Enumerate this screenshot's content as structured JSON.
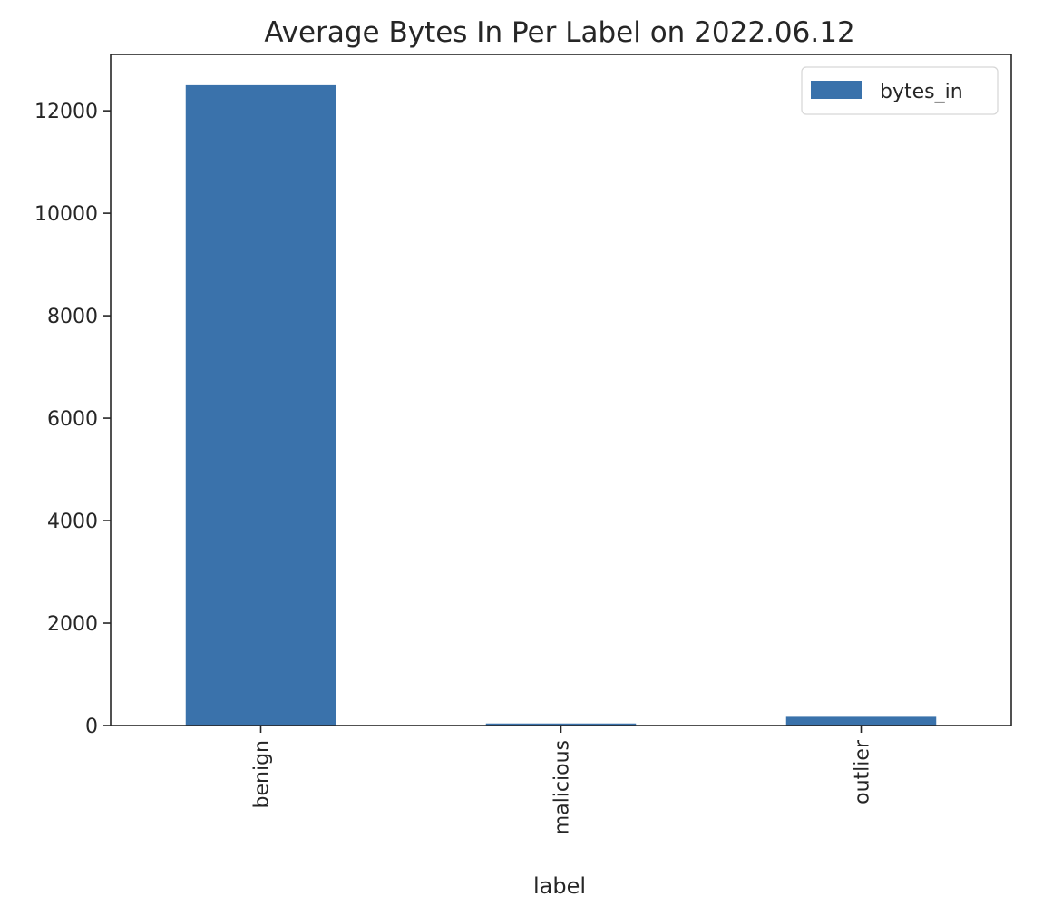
{
  "chart_data": {
    "type": "bar",
    "title": "Average Bytes In Per Label on 2022.06.12",
    "xlabel": "label",
    "ylabel": "",
    "categories": [
      "benign",
      "malicious",
      "outlier"
    ],
    "series": [
      {
        "name": "bytes_in",
        "values": [
          12500,
          40,
          170
        ]
      }
    ],
    "ylim": [
      0,
      13100
    ],
    "yticks": [
      0,
      2000,
      4000,
      6000,
      8000,
      10000,
      12000
    ],
    "ytick_labels": [
      "0",
      "2000",
      "4000",
      "6000",
      "8000",
      "10000",
      "12000"
    ],
    "grid": false,
    "legend_position": "top-right",
    "colors": {
      "bar": "#3a72ab",
      "axis": "#262626"
    }
  }
}
